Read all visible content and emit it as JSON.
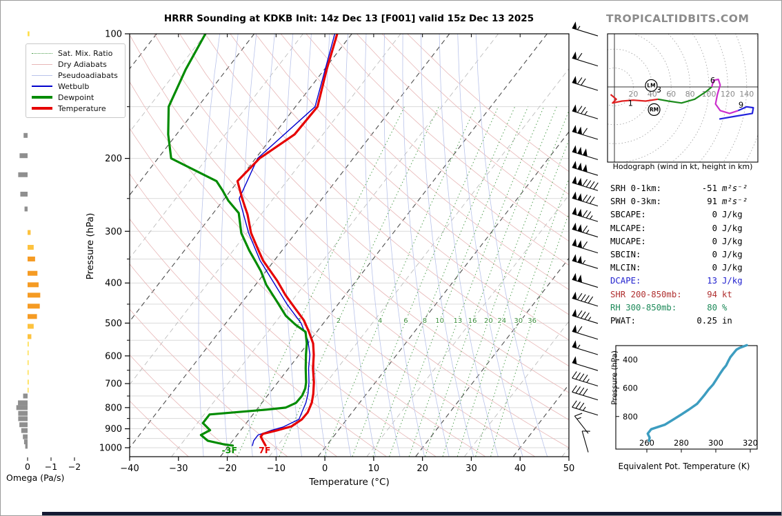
{
  "title": "HRRR Sounding at KDKB Init: 14z Dec 13 [F001] valid 15z Dec 13 2025",
  "watermark": "TROPICALTIDBITS.COM",
  "footer": {
    "bar_color": "#141a33"
  },
  "legend": {
    "items": [
      {
        "label": "Sat. Mix. Ratio",
        "color": "#4f9e4f",
        "dash": "dotted",
        "weight": 1
      },
      {
        "label": "Dry Adiabats",
        "color": "#e7b6b6",
        "dash": "solid",
        "weight": 1
      },
      {
        "label": "Pseudoadiabats",
        "color": "#b9c3ea",
        "dash": "solid",
        "weight": 1
      },
      {
        "label": "Wetbulb",
        "color": "#0000cd",
        "dash": "solid",
        "weight": 2
      },
      {
        "label": "Dewpoint",
        "color": "#008b00",
        "dash": "solid",
        "weight": 4
      },
      {
        "label": "Temperature",
        "color": "#e60000",
        "dash": "solid",
        "weight": 4
      }
    ]
  },
  "skewt": {
    "xlabel": "Temperature (°C)",
    "ylabel": "Pressure (hPa)",
    "temp_ticks": [
      -40,
      -30,
      -20,
      -10,
      0,
      10,
      20,
      30,
      40,
      50
    ],
    "pressure_ticks": [
      100,
      200,
      300,
      400,
      500,
      600,
      700,
      800,
      900,
      1000
    ],
    "minor_pressure_ticks": [
      150,
      250,
      350,
      450,
      550,
      650,
      750,
      850,
      950
    ],
    "surface_labels": [
      {
        "text": "-3F",
        "color": "#089000",
        "t": -19.2,
        "p": 1012
      },
      {
        "text": "7F",
        "color": "#e60000",
        "t": -12.0,
        "p": 1012
      }
    ],
    "mixing_ratio_lines": [
      1,
      2,
      4,
      6,
      8,
      10,
      13,
      16,
      20,
      24,
      30,
      36
    ]
  },
  "omega": {
    "label": "Omega (Pa/s)",
    "ticks": [
      0,
      -1,
      -2
    ]
  },
  "hodograph": {
    "caption": "Hodograph (wind in kt, height in km)",
    "ring_labels": [
      20,
      40,
      60,
      80,
      100,
      120,
      140
    ]
  },
  "theta_e": {
    "caption": "Equivalent Pot. Temperature (K)",
    "ylabel": "Pressure (hPa)",
    "x_ticks": [
      260,
      280,
      300,
      320
    ],
    "y_ticks": [
      400,
      600,
      800
    ]
  },
  "stats": {
    "rows": [
      {
        "label": "SRH 0-1km:",
        "value": "-51",
        "unit": "m²s⁻²",
        "color": "#000000"
      },
      {
        "label": "SRH 0-3km:",
        "value": "91",
        "unit": "m²s⁻²",
        "color": "#000000"
      },
      {
        "label": "SBCAPE:",
        "value": "0",
        "unit": "J/kg",
        "color": "#000000"
      },
      {
        "label": "MLCAPE:",
        "value": "0",
        "unit": "J/kg",
        "color": "#000000"
      },
      {
        "label": "MUCAPE:",
        "value": "0",
        "unit": "J/kg",
        "color": "#000000"
      },
      {
        "label": "SBCIN:",
        "value": "0",
        "unit": "J/kg",
        "color": "#000000"
      },
      {
        "label": "MLCIN:",
        "value": "0",
        "unit": "J/kg",
        "color": "#000000"
      },
      {
        "label": "DCAPE:",
        "value": "13",
        "unit": "J/kg",
        "color": "#2222cf"
      },
      {
        "label": "SHR 200-850mb:",
        "value": "94",
        "unit": "kt",
        "color": "#b03030"
      },
      {
        "label": "RH 300-850mb:",
        "value": "80",
        "unit": "%",
        "color": "#1e8a5a"
      },
      {
        "label": "PWAT:",
        "value": "0.25",
        "unit": "in",
        "color": "#000000"
      }
    ]
  },
  "chart_data": [
    {
      "id": "skewt",
      "type": "line",
      "title": "HRRR Sounding at KDKB Init: 14z Dec 13 [F001] valid 15z Dec 13 2025",
      "xlabel": "Temperature (°C)",
      "ylabel": "Pressure (hPa)",
      "xlim": [
        -40,
        50
      ],
      "ylim_hpa": [
        100,
        1050
      ],
      "series": [
        {
          "name": "Temperature",
          "color": "#e60000",
          "width": 3.2,
          "points": [
            [
              100,
              -63.0
            ],
            [
              122,
              -59.5
            ],
            [
              150,
              -55.5
            ],
            [
              175,
              -55.8
            ],
            [
              200,
              -59.2
            ],
            [
              227,
              -60.1
            ],
            [
              250,
              -56.4
            ],
            [
              273,
              -52.8
            ],
            [
              303,
              -49.1
            ],
            [
              331,
              -45.2
            ],
            [
              353,
              -42.3
            ],
            [
              395,
              -36.2
            ],
            [
              428,
              -32.2
            ],
            [
              462,
              -28.0
            ],
            [
              492,
              -24.5
            ],
            [
              525,
              -21.6
            ],
            [
              560,
              -18.9
            ],
            [
              596,
              -17.0
            ],
            [
              643,
              -15.0
            ],
            [
              695,
              -12.6
            ],
            [
              741,
              -10.9
            ],
            [
              779,
              -9.8
            ],
            [
              822,
              -9.1
            ],
            [
              854,
              -9.2
            ],
            [
              888,
              -10.2
            ],
            [
              909,
              -12.6
            ],
            [
              926,
              -14.9
            ],
            [
              940,
              -14.9
            ],
            [
              962,
              -13.8
            ],
            [
              988,
              -12.5
            ]
          ]
        },
        {
          "name": "Dewpoint",
          "color": "#008b00",
          "width": 3.2,
          "points": [
            [
              100,
              -90.0
            ],
            [
              122,
              -88.4
            ],
            [
              150,
              -86.0
            ],
            [
              175,
              -81.7
            ],
            [
              200,
              -77.3
            ],
            [
              227,
              -64.4
            ],
            [
              239,
              -61.7
            ],
            [
              253,
              -58.9
            ],
            [
              271,
              -54.8
            ],
            [
              303,
              -51.1
            ],
            [
              334,
              -46.7
            ],
            [
              357,
              -43.4
            ],
            [
              375,
              -41.0
            ],
            [
              404,
              -37.8
            ],
            [
              444,
              -32.9
            ],
            [
              480,
              -28.9
            ],
            [
              505,
              -25.4
            ],
            [
              525,
              -22.3
            ],
            [
              560,
              -20.2
            ],
            [
              596,
              -18.6
            ],
            [
              643,
              -16.5
            ],
            [
              695,
              -14.2
            ],
            [
              719,
              -13.4
            ],
            [
              748,
              -12.9
            ],
            [
              779,
              -13.0
            ],
            [
              800,
              -14.4
            ],
            [
              809,
              -18.0
            ],
            [
              831,
              -28.9
            ],
            [
              872,
              -28.9
            ],
            [
              907,
              -26.3
            ],
            [
              932,
              -27.4
            ],
            [
              962,
              -25.1
            ],
            [
              981,
              -21.3
            ],
            [
              988,
              -19.2
            ]
          ]
        },
        {
          "name": "Wetbulb",
          "color": "#0000cd",
          "width": 1.4,
          "points": [
            [
              100,
              -63.5
            ],
            [
              150,
              -56.0
            ],
            [
              200,
              -59.6
            ],
            [
              250,
              -57.0
            ],
            [
              303,
              -49.6
            ],
            [
              353,
              -42.9
            ],
            [
              400,
              -36.5
            ],
            [
              450,
              -30.5
            ],
            [
              500,
              -24.6
            ],
            [
              550,
              -20.5
            ],
            [
              596,
              -17.8
            ],
            [
              643,
              -15.9
            ],
            [
              695,
              -13.6
            ],
            [
              741,
              -12.0
            ],
            [
              779,
              -11.0
            ],
            [
              822,
              -10.3
            ],
            [
              854,
              -9.8
            ],
            [
              891,
              -11.8
            ],
            [
              909,
              -13.8
            ],
            [
              932,
              -15.7
            ],
            [
              962,
              -15.7
            ],
            [
              988,
              -15.2
            ]
          ]
        }
      ]
    },
    {
      "id": "omega",
      "type": "bar",
      "xlabel": "Omega (Pa/s)",
      "x_ticks": [
        0,
        -1,
        -2
      ],
      "bars": [
        {
          "p": 100,
          "v": -0.08
        },
        {
          "p": 124,
          "v": -0.1
        },
        {
          "p": 150,
          "v": -0.07
        },
        {
          "p": 176,
          "v": 0.17
        },
        {
          "p": 197,
          "v": 0.34
        },
        {
          "p": 219,
          "v": 0.4
        },
        {
          "p": 244,
          "v": 0.31
        },
        {
          "p": 265,
          "v": 0.13
        },
        {
          "p": 302,
          "v": -0.13
        },
        {
          "p": 328,
          "v": -0.26
        },
        {
          "p": 350,
          "v": -0.32
        },
        {
          "p": 379,
          "v": -0.42
        },
        {
          "p": 404,
          "v": -0.47
        },
        {
          "p": 428,
          "v": -0.54
        },
        {
          "p": 455,
          "v": -0.52
        },
        {
          "p": 482,
          "v": -0.4
        },
        {
          "p": 509,
          "v": -0.26
        },
        {
          "p": 539,
          "v": -0.16
        },
        {
          "p": 562,
          "v": -0.05
        },
        {
          "p": 590,
          "v": -0.04
        },
        {
          "p": 623,
          "v": -0.04
        },
        {
          "p": 658,
          "v": -0.03
        },
        {
          "p": 694,
          "v": -0.05
        },
        {
          "p": 726,
          "v": -0.04
        },
        {
          "p": 750,
          "v": 0.19
        },
        {
          "p": 779,
          "v": 0.41
        },
        {
          "p": 800,
          "v": 0.48
        },
        {
          "p": 826,
          "v": 0.4
        },
        {
          "p": 851,
          "v": 0.4
        },
        {
          "p": 880,
          "v": 0.35
        },
        {
          "p": 909,
          "v": 0.27
        },
        {
          "p": 941,
          "v": 0.2
        },
        {
          "p": 968,
          "v": 0.15
        },
        {
          "p": 992,
          "v": 0.1
        }
      ]
    },
    {
      "id": "wind_barbs",
      "type": "wind",
      "unit": "kt",
      "levels": [
        {
          "p": 99,
          "kt": 55
        },
        {
          "p": 117,
          "kt": 60
        },
        {
          "p": 134,
          "kt": 70
        },
        {
          "p": 157,
          "kt": 75
        },
        {
          "p": 176,
          "kt": 110
        },
        {
          "p": 197,
          "kt": 150
        },
        {
          "p": 215,
          "kt": 150
        },
        {
          "p": 234,
          "kt": 140
        },
        {
          "p": 255,
          "kt": 130
        },
        {
          "p": 278,
          "kt": 125
        },
        {
          "p": 303,
          "kt": 115
        },
        {
          "p": 331,
          "kt": 110
        },
        {
          "p": 361,
          "kt": 105
        },
        {
          "p": 401,
          "kt": 100
        },
        {
          "p": 445,
          "kt": 90
        },
        {
          "p": 490,
          "kt": 85
        },
        {
          "p": 535,
          "kt": 60
        },
        {
          "p": 583,
          "kt": 55
        },
        {
          "p": 637,
          "kt": 50
        },
        {
          "p": 694,
          "kt": 45
        },
        {
          "p": 750,
          "kt": 40
        },
        {
          "p": 816,
          "kt": 35
        },
        {
          "p": 880,
          "kt": 15,
          "angle": 52
        },
        {
          "p": 967,
          "kt": 8,
          "angle": 74
        }
      ]
    },
    {
      "id": "hodograph",
      "type": "line",
      "caption": "Hodograph (wind in kt, height in km)",
      "ring_step_kt": 20,
      "segments": [
        {
          "name": "0-3km",
          "color": "#e02020",
          "points": [
            [
              -4,
              -8
            ],
            [
              2,
              -13
            ],
            [
              -2,
              -17
            ],
            [
              8,
              -15
            ],
            [
              20,
              -14
            ],
            [
              33,
              -15
            ],
            [
              46,
              -13
            ]
          ]
        },
        {
          "name": "3-6km",
          "color": "#1a8a1a",
          "points": [
            [
              46,
              -13
            ],
            [
              57,
              -15
            ],
            [
              71,
              -17
            ],
            [
              85,
              -13
            ],
            [
              97,
              -5
            ],
            [
              103,
              0
            ]
          ]
        },
        {
          "name": "6-9km",
          "color": "#cc2fcc",
          "points": [
            [
              103,
              0
            ],
            [
              105,
              7
            ],
            [
              110,
              8
            ],
            [
              112,
              2
            ],
            [
              109,
              -8
            ],
            [
              107,
              -18
            ],
            [
              112,
              -25
            ],
            [
              122,
              -28
            ],
            [
              131,
              -25
            ]
          ]
        },
        {
          "name": "9-12km",
          "color": "#2222dd",
          "points": [
            [
              131,
              -25
            ],
            [
              140,
              -21
            ],
            [
              147,
              -22
            ],
            [
              146,
              -28
            ],
            [
              128,
              -31
            ],
            [
              111,
              -34
            ]
          ]
        }
      ],
      "height_labels": [
        {
          "text": "1",
          "u": 17,
          "v": -20
        },
        {
          "text": "3",
          "u": 47,
          "v": -6
        },
        {
          "text": "6",
          "u": 104,
          "v": 4
        },
        {
          "text": "9",
          "u": 134,
          "v": -22
        }
      ],
      "markers": [
        {
          "text": "LM",
          "u": 39,
          "v": 1.5
        },
        {
          "text": "RM",
          "u": 42,
          "v": -24
        }
      ]
    },
    {
      "id": "theta_e",
      "type": "line",
      "xlabel": "Equivalent Pot. Temperature (K)",
      "ylabel": "Pressure (hPa)",
      "color": "#3d9dc0",
      "points": [
        [
          971,
          261.3
        ],
        [
          948,
          261.6
        ],
        [
          921,
          260.5
        ],
        [
          890,
          262.5
        ],
        [
          858,
          270.4
        ],
        [
          820,
          275.5
        ],
        [
          786,
          280.0
        ],
        [
          750,
          284.5
        ],
        [
          710,
          289.2
        ],
        [
          652,
          293.2
        ],
        [
          610,
          295.8
        ],
        [
          575,
          298.4
        ],
        [
          535,
          300.5
        ],
        [
          499,
          302.4
        ],
        [
          465,
          304.3
        ],
        [
          440,
          306.0
        ],
        [
          410,
          307.2
        ],
        [
          382,
          308.4
        ],
        [
          350,
          310.5
        ],
        [
          328,
          312.0
        ],
        [
          315,
          314.0
        ],
        [
          306,
          316.0
        ],
        [
          297,
          318.0
        ]
      ]
    }
  ]
}
